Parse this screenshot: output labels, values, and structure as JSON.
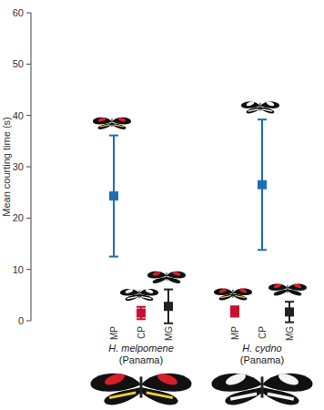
{
  "chart_data": {
    "type": "scatter",
    "marker": "square",
    "y_label": "Mean courting time (s)",
    "categories": [
      "MP",
      "CP",
      "MG",
      "MP",
      "CP",
      "MG"
    ],
    "values": [
      24.3,
      1.5,
      2.8,
      1.8,
      26.5,
      1.7
    ],
    "errors": [
      11.8,
      1.2,
      3.3,
      1.0,
      12.7,
      2.0
    ],
    "colors": [
      "#1f6db5",
      "#c8102e",
      "#222222",
      "#c8102e",
      "#1f6db5",
      "#222222"
    ],
    "groups": [
      {
        "label": "H. melpomene",
        "sublabel": "(Panama)"
      },
      {
        "label": "H. cydno",
        "sublabel": "(Panama)"
      }
    ],
    "ylim": [
      0,
      60
    ],
    "yticks": [
      0,
      10,
      20,
      30,
      40,
      50,
      60
    ],
    "grid": false
  }
}
